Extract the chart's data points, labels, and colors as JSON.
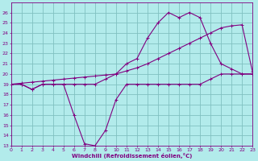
{
  "xlabel": "Windchill (Refroidissement éolien,°C)",
  "bg_color": "#b2ebeb",
  "line_color": "#800080",
  "grid_color": "#80c0c0",
  "xmin": 0,
  "xmax": 23,
  "ymin": 13,
  "ymax": 27,
  "yticks": [
    13,
    14,
    15,
    16,
    17,
    18,
    19,
    20,
    21,
    22,
    23,
    24,
    25,
    26
  ],
  "xticks": [
    0,
    1,
    2,
    3,
    4,
    5,
    6,
    7,
    8,
    9,
    10,
    11,
    12,
    13,
    14,
    15,
    16,
    17,
    18,
    19,
    20,
    21,
    22,
    23
  ],
  "line1_x": [
    0,
    1,
    2,
    3,
    4,
    5,
    6,
    7,
    8,
    9,
    10,
    11,
    12,
    13,
    14,
    15,
    16,
    17,
    18,
    19,
    20,
    21,
    22,
    23
  ],
  "line1_y": [
    19,
    19,
    18.5,
    19,
    19,
    19,
    16.0,
    13.2,
    13.0,
    14.5,
    17.5,
    19,
    19,
    19,
    19,
    19,
    19,
    19,
    19,
    19.5,
    20,
    20,
    20,
    20
  ],
  "line2_x": [
    0,
    1,
    2,
    3,
    4,
    5,
    6,
    7,
    8,
    9,
    10,
    11,
    12,
    13,
    14,
    15,
    16,
    17,
    18,
    19,
    20,
    21,
    22,
    23
  ],
  "line2_y": [
    19,
    19,
    18.5,
    19,
    19,
    19,
    19,
    19,
    19,
    19.5,
    20,
    21,
    21.5,
    23.5,
    25,
    26,
    25.5,
    26,
    25.5,
    23,
    21,
    20.5,
    20,
    20
  ],
  "line3_x": [
    0,
    1,
    2,
    3,
    4,
    5,
    6,
    7,
    8,
    9,
    10,
    11,
    12,
    13,
    14,
    15,
    16,
    17,
    18,
    19,
    20,
    21,
    22,
    23
  ],
  "line3_y": [
    19,
    19.1,
    19.2,
    19.3,
    19.4,
    19.5,
    19.6,
    19.7,
    19.8,
    19.9,
    20.0,
    20.3,
    20.6,
    21.0,
    21.5,
    22.0,
    22.5,
    23.0,
    23.5,
    24.0,
    24.5,
    24.7,
    24.8,
    20.2
  ]
}
